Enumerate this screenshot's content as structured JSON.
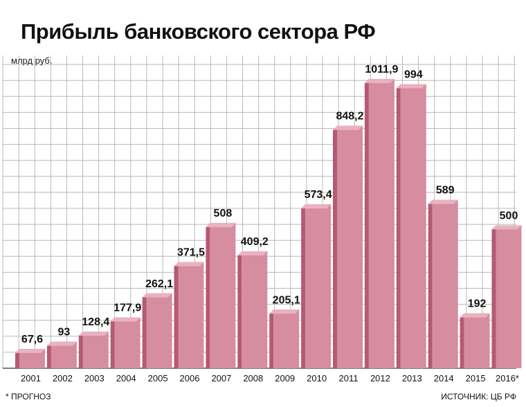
{
  "title": "Прибыль банковского сектора РФ",
  "unit_label": "млрд руб.",
  "footnote": "* ПРОГНОЗ",
  "source": "ИСТОЧНИК: ЦБ РФ",
  "colors": {
    "bar_front": "#d68da0",
    "bar_side": "#b55a72",
    "bar_top": "#e9b2c1",
    "grid": "#b8b8b8"
  },
  "chart_data": {
    "type": "bar",
    "title": "Прибыль банковского сектора РФ",
    "ylabel": "млрд руб.",
    "xlabel": "",
    "categories": [
      "2001",
      "2002",
      "2003",
      "2004",
      "2005",
      "2006",
      "2007",
      "2008",
      "2009",
      "2010",
      "2011",
      "2012",
      "2013",
      "2014",
      "2015",
      "2016*"
    ],
    "values": [
      67.6,
      93,
      128.4,
      177.9,
      262.1,
      371.5,
      508,
      409.2,
      205.1,
      573.4,
      848.2,
      1011.9,
      994,
      589,
      192,
      500
    ],
    "value_labels": [
      "67,6",
      "93",
      "128,4",
      "177,9",
      "262,1",
      "371,5",
      "508",
      "409,2",
      "205,1",
      "573,4",
      "848,2",
      "1011,9",
      "994",
      "589",
      "192",
      "500"
    ],
    "ylim": [
      0,
      1100
    ],
    "grid": true,
    "legend": "none"
  }
}
